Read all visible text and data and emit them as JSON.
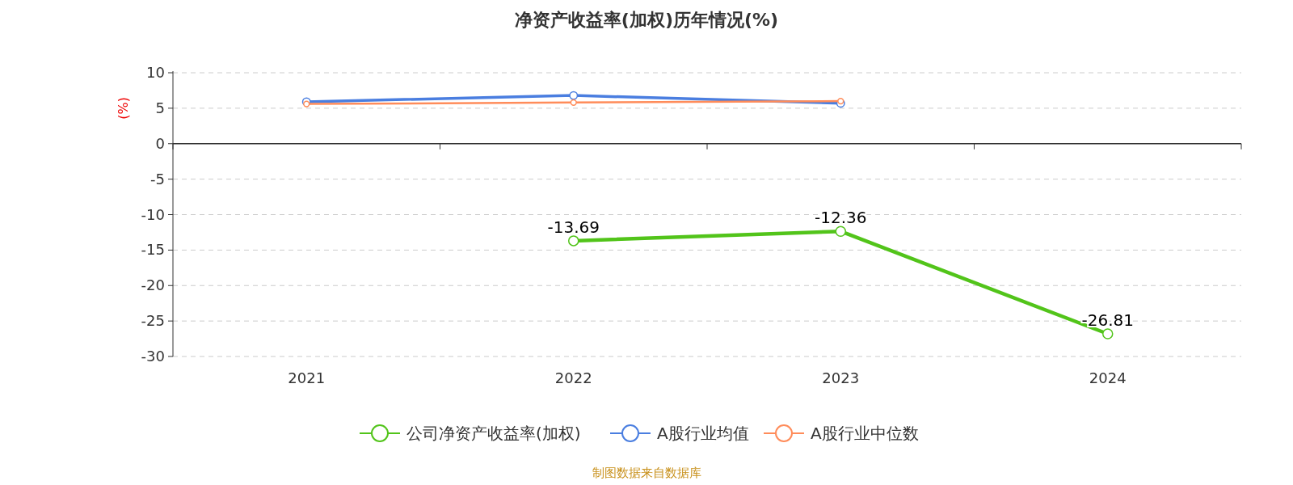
{
  "chart_data": {
    "type": "line",
    "title": "净资产收益率(加权)历年情况(%)",
    "ylabel": "(%)",
    "categories": [
      "2021",
      "2022",
      "2023",
      "2024"
    ],
    "series": [
      {
        "name": "公司净资产收益率(加权)",
        "color": "#52c41a",
        "values": [
          null,
          -13.69,
          -12.36,
          -26.81
        ],
        "value_labels": [
          null,
          "-13.69",
          "-12.36",
          "-26.81"
        ]
      },
      {
        "name": "A股行业均值",
        "color": "#4a7ee0",
        "values": [
          5.9,
          6.8,
          5.7,
          null
        ]
      },
      {
        "name": "A股行业中位数",
        "color": "#ff8c5a",
        "values": [
          5.6,
          5.8,
          6.0,
          null
        ]
      }
    ],
    "ylim": [
      -30,
      10
    ],
    "yticks": [
      -30,
      -25,
      -20,
      -15,
      -10,
      -5,
      0,
      5,
      10
    ],
    "grid": "y",
    "legend": "bottom",
    "marker": "circle",
    "annotations": [
      "制图数据来自数据库"
    ]
  }
}
